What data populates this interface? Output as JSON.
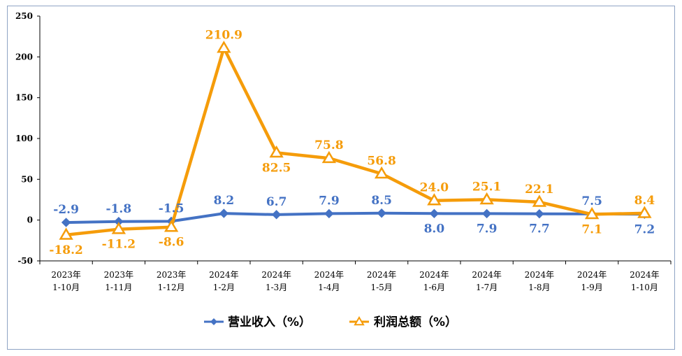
{
  "chart_data": {
    "type": "line",
    "categories": [
      [
        "2023年",
        "1-10月"
      ],
      [
        "2023年",
        "1-11月"
      ],
      [
        "2023年",
        "1-12月"
      ],
      [
        "2024年",
        "1-2月"
      ],
      [
        "2024年",
        "1-3月"
      ],
      [
        "2024年",
        "1-4月"
      ],
      [
        "2024年",
        "1-5月"
      ],
      [
        "2024年",
        "1-6月"
      ],
      [
        "2024年",
        "1-7月"
      ],
      [
        "2024年",
        "1-8月"
      ],
      [
        "2024年",
        "1-9月"
      ],
      [
        "2024年",
        "1-10月"
      ]
    ],
    "yticks": [
      "250",
      "200",
      "150",
      "100",
      "50",
      "0",
      "-50"
    ],
    "ylim": [
      -50,
      250
    ],
    "series": [
      {
        "name": "营业收入（%）",
        "color": "#4472c4",
        "marker": "diamond",
        "values": [
          -2.9,
          -1.8,
          -1.5,
          8.2,
          6.7,
          7.9,
          8.5,
          8.0,
          7.9,
          7.7,
          7.5,
          7.2
        ],
        "labels": [
          "-2.9",
          "-1.8",
          "-1.5",
          "8.2",
          "6.7",
          "7.9",
          "8.5",
          "8.0",
          "7.9",
          "7.7",
          "7.5",
          "7.2"
        ],
        "label_side": [
          "above",
          "above",
          "above",
          "above",
          "above",
          "above",
          "above",
          "below",
          "below",
          "below",
          "above",
          "below"
        ]
      },
      {
        "name": "利润总额（%）",
        "color": "#f59c0a",
        "marker": "triangle",
        "values": [
          -18.2,
          -11.2,
          -8.6,
          210.9,
          82.5,
          75.8,
          56.8,
          24.0,
          25.1,
          22.1,
          7.1,
          8.4
        ],
        "labels": [
          "-18.2",
          "-11.2",
          "-8.6",
          "210.9",
          "82.5",
          "75.8",
          "56.8",
          "24.0",
          "25.1",
          "22.1",
          "7.1",
          "8.4"
        ],
        "label_side": [
          "below",
          "below",
          "below",
          "above",
          "below",
          "above",
          "above",
          "above",
          "above",
          "above",
          "below",
          "above"
        ]
      }
    ],
    "grid": false,
    "legend": "bottom"
  }
}
